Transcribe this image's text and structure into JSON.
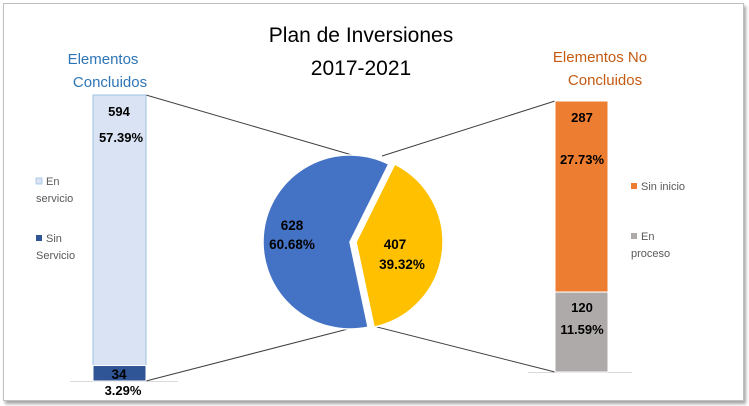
{
  "chart_data": {
    "type": "bar-of-pie",
    "title": [
      "Plan de Inversiones",
      "2017-2021"
    ],
    "pie": {
      "slices": [
        {
          "value": 628,
          "percent": "60.68%",
          "color": "#4472c4"
        },
        {
          "value": 407,
          "percent": "39.32%",
          "color": "#ffc000"
        }
      ]
    },
    "left_bar": {
      "heading": [
        "Elementos",
        "Concluidos"
      ],
      "heading_color": "#2e75b6",
      "segments": [
        {
          "name": "En servicio",
          "legend_lines": [
            "En",
            "servicio"
          ],
          "value": 594,
          "percent": "57.39%",
          "color": "#dae3f3"
        },
        {
          "name": "Sin Servicio",
          "legend_lines": [
            "Sin",
            "Servicio"
          ],
          "value": 34,
          "percent": "3.29%",
          "color": "#2f5597"
        }
      ]
    },
    "right_bar": {
      "heading": [
        "Elementos No",
        "Concluidos"
      ],
      "heading_color": "#c55a11",
      "segments": [
        {
          "name": "Sin inicio",
          "legend_lines": [
            "Sin inicio"
          ],
          "value": 287,
          "percent": "27.73%",
          "color": "#ed7d31"
        },
        {
          "name": "En proceso",
          "legend_lines": [
            "En",
            "proceso"
          ],
          "value": 120,
          "percent": "11.59%",
          "color": "#aeaaaa"
        }
      ]
    },
    "legend_placement": "beside each bar"
  }
}
